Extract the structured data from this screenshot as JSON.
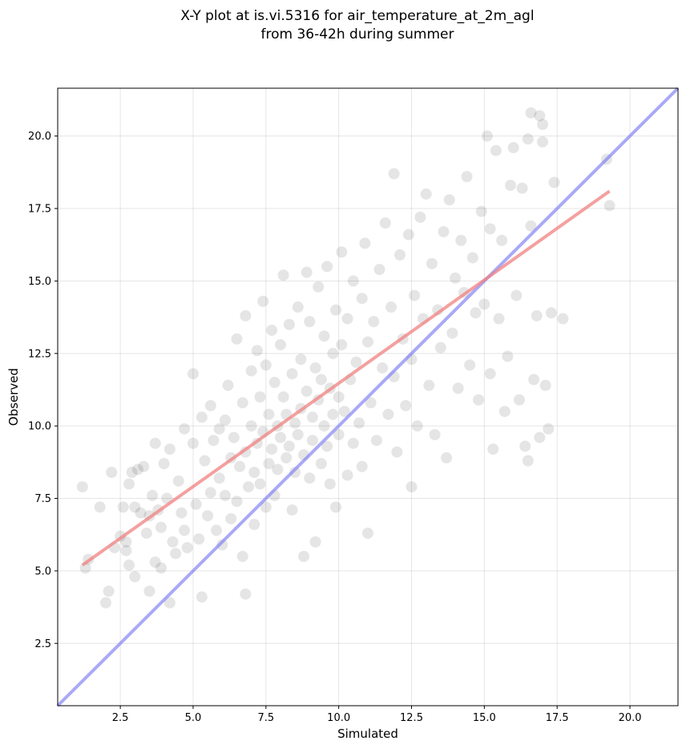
{
  "chart_data": {
    "type": "scatter",
    "title": [
      "X-Y plot at is.vi.5316 for air_temperature_at_2m_agl",
      "from 36-42h during summer"
    ],
    "xlabel": "Simulated",
    "ylabel": "Observed",
    "xlim": [
      0.35,
      21.65
    ],
    "ylim": [
      0.35,
      21.65
    ],
    "xticks": [
      2.5,
      5.0,
      7.5,
      10.0,
      12.5,
      15.0,
      17.5,
      20.0
    ],
    "yticks": [
      2.5,
      5.0,
      7.5,
      10.0,
      12.5,
      15.0,
      17.5,
      20.0
    ],
    "xtick_labels": [
      "2.5",
      "5.0",
      "7.5",
      "10.0",
      "12.5",
      "15.0",
      "17.5",
      "20.0"
    ],
    "ytick_labels": [
      "2.5",
      "5.0",
      "7.5",
      "10.0",
      "12.5",
      "15.0",
      "17.5",
      "20.0"
    ],
    "grid": true,
    "point_color": "#000000",
    "point_alpha": 0.1,
    "series": [
      {
        "values_xy": [
          [
            1.2,
            7.9
          ],
          [
            1.3,
            5.1
          ],
          [
            1.4,
            5.4
          ],
          [
            1.8,
            7.2
          ],
          [
            2.0,
            3.9
          ],
          [
            2.1,
            4.3
          ],
          [
            2.2,
            8.4
          ],
          [
            2.3,
            5.8
          ],
          [
            2.5,
            6.2
          ],
          [
            2.6,
            7.2
          ],
          [
            2.7,
            5.7
          ],
          [
            2.7,
            6.0
          ],
          [
            2.8,
            5.2
          ],
          [
            2.8,
            8.0
          ],
          [
            2.9,
            8.4
          ],
          [
            3.0,
            7.2
          ],
          [
            3.0,
            4.8
          ],
          [
            3.1,
            8.5
          ],
          [
            3.2,
            7.0
          ],
          [
            3.3,
            8.6
          ],
          [
            3.4,
            6.3
          ],
          [
            3.5,
            4.3
          ],
          [
            3.5,
            6.9
          ],
          [
            3.6,
            7.6
          ],
          [
            3.7,
            5.3
          ],
          [
            3.7,
            9.4
          ],
          [
            3.8,
            7.1
          ],
          [
            3.9,
            5.1
          ],
          [
            3.9,
            6.5
          ],
          [
            4.0,
            8.7
          ],
          [
            4.1,
            7.5
          ],
          [
            4.2,
            9.2
          ],
          [
            4.2,
            3.9
          ],
          [
            4.3,
            6.0
          ],
          [
            4.4,
            5.6
          ],
          [
            4.5,
            8.1
          ],
          [
            4.6,
            7.0
          ],
          [
            4.7,
            9.9
          ],
          [
            4.7,
            6.4
          ],
          [
            4.8,
            5.8
          ],
          [
            5.0,
            11.8
          ],
          [
            5.0,
            9.4
          ],
          [
            5.1,
            7.3
          ],
          [
            5.2,
            6.1
          ],
          [
            5.3,
            10.3
          ],
          [
            5.3,
            4.1
          ],
          [
            5.4,
            8.8
          ],
          [
            5.5,
            6.9
          ],
          [
            5.6,
            10.7
          ],
          [
            5.6,
            7.7
          ],
          [
            5.7,
            9.5
          ],
          [
            5.8,
            6.4
          ],
          [
            5.9,
            8.2
          ],
          [
            5.9,
            9.9
          ],
          [
            6.0,
            5.9
          ],
          [
            6.1,
            7.6
          ],
          [
            6.1,
            10.2
          ],
          [
            6.2,
            11.4
          ],
          [
            6.3,
            8.9
          ],
          [
            6.3,
            6.8
          ],
          [
            6.4,
            9.6
          ],
          [
            6.5,
            13.0
          ],
          [
            6.5,
            7.4
          ],
          [
            6.6,
            8.6
          ],
          [
            6.7,
            10.8
          ],
          [
            6.7,
            5.5
          ],
          [
            6.8,
            13.8
          ],
          [
            6.8,
            9.1
          ],
          [
            6.8,
            4.2
          ],
          [
            6.9,
            7.9
          ],
          [
            7.0,
            11.9
          ],
          [
            7.0,
            10.0
          ],
          [
            7.1,
            8.4
          ],
          [
            7.1,
            6.6
          ],
          [
            7.2,
            12.6
          ],
          [
            7.2,
            9.4
          ],
          [
            7.3,
            11.0
          ],
          [
            7.3,
            8.0
          ],
          [
            7.4,
            14.3
          ],
          [
            7.4,
            9.8
          ],
          [
            7.5,
            7.2
          ],
          [
            7.5,
            12.1
          ],
          [
            7.6,
            10.4
          ],
          [
            7.6,
            8.7
          ],
          [
            7.7,
            13.3
          ],
          [
            7.7,
            9.2
          ],
          [
            7.8,
            11.5
          ],
          [
            7.8,
            7.6
          ],
          [
            7.9,
            10.0
          ],
          [
            7.9,
            8.5
          ],
          [
            8.0,
            12.8
          ],
          [
            8.0,
            9.6
          ],
          [
            8.1,
            15.2
          ],
          [
            8.1,
            11.0
          ],
          [
            8.2,
            8.9
          ],
          [
            8.2,
            10.4
          ],
          [
            8.3,
            13.5
          ],
          [
            8.3,
            9.3
          ],
          [
            8.4,
            7.1
          ],
          [
            8.4,
            11.8
          ],
          [
            8.5,
            10.1
          ],
          [
            8.5,
            8.4
          ],
          [
            8.6,
            14.1
          ],
          [
            8.6,
            9.7
          ],
          [
            8.7,
            12.3
          ],
          [
            8.7,
            10.6
          ],
          [
            8.8,
            5.5
          ],
          [
            8.8,
            9.0
          ],
          [
            8.9,
            15.3
          ],
          [
            8.9,
            11.2
          ],
          [
            9.0,
            8.2
          ],
          [
            9.0,
            13.6
          ],
          [
            9.1,
            10.3
          ],
          [
            9.1,
            9.5
          ],
          [
            9.2,
            12.0
          ],
          [
            9.2,
            6.0
          ],
          [
            9.3,
            10.9
          ],
          [
            9.3,
            14.8
          ],
          [
            9.4,
            8.7
          ],
          [
            9.4,
            11.6
          ],
          [
            9.5,
            10.0
          ],
          [
            9.5,
            13.1
          ],
          [
            9.6,
            9.3
          ],
          [
            9.6,
            15.5
          ],
          [
            9.7,
            11.3
          ],
          [
            9.7,
            8.0
          ],
          [
            9.8,
            12.5
          ],
          [
            9.8,
            10.4
          ],
          [
            9.9,
            7.2
          ],
          [
            9.9,
            14.0
          ],
          [
            10.0,
            11.0
          ],
          [
            10.0,
            9.7
          ],
          [
            10.1,
            16.0
          ],
          [
            10.1,
            12.8
          ],
          [
            10.2,
            10.5
          ],
          [
            10.3,
            8.3
          ],
          [
            10.3,
            13.7
          ],
          [
            10.4,
            11.6
          ],
          [
            10.5,
            9.4
          ],
          [
            10.5,
            15.0
          ],
          [
            10.6,
            12.2
          ],
          [
            10.7,
            10.1
          ],
          [
            10.8,
            14.4
          ],
          [
            10.8,
            8.6
          ],
          [
            10.9,
            16.3
          ],
          [
            11.0,
            12.9
          ],
          [
            11.0,
            6.3
          ],
          [
            11.1,
            10.8
          ],
          [
            11.2,
            13.6
          ],
          [
            11.3,
            9.5
          ],
          [
            11.4,
            15.4
          ],
          [
            11.5,
            12.0
          ],
          [
            11.6,
            17.0
          ],
          [
            11.7,
            10.4
          ],
          [
            11.8,
            14.1
          ],
          [
            11.9,
            18.7
          ],
          [
            11.9,
            11.7
          ],
          [
            12.0,
            9.1
          ],
          [
            12.1,
            15.9
          ],
          [
            12.2,
            13.0
          ],
          [
            12.3,
            10.7
          ],
          [
            12.4,
            16.6
          ],
          [
            12.5,
            12.3
          ],
          [
            12.5,
            7.9
          ],
          [
            12.6,
            14.5
          ],
          [
            12.7,
            10.0
          ],
          [
            12.8,
            17.2
          ],
          [
            12.9,
            13.7
          ],
          [
            13.0,
            18.0
          ],
          [
            13.1,
            11.4
          ],
          [
            13.2,
            15.6
          ],
          [
            13.3,
            9.7
          ],
          [
            13.4,
            14.0
          ],
          [
            13.5,
            12.7
          ],
          [
            13.6,
            16.7
          ],
          [
            13.7,
            8.9
          ],
          [
            13.8,
            17.8
          ],
          [
            13.9,
            13.2
          ],
          [
            14.0,
            15.1
          ],
          [
            14.1,
            11.3
          ],
          [
            14.2,
            16.4
          ],
          [
            14.3,
            14.6
          ],
          [
            14.4,
            18.6
          ],
          [
            14.5,
            12.1
          ],
          [
            14.6,
            15.8
          ],
          [
            14.7,
            13.9
          ],
          [
            14.8,
            10.9
          ],
          [
            14.9,
            17.4
          ],
          [
            15.0,
            14.2
          ],
          [
            15.1,
            20.0
          ],
          [
            15.2,
            16.8
          ],
          [
            15.2,
            11.8
          ],
          [
            15.3,
            9.2
          ],
          [
            15.4,
            19.5
          ],
          [
            15.5,
            13.7
          ],
          [
            15.6,
            16.4
          ],
          [
            15.7,
            10.5
          ],
          [
            15.8,
            12.4
          ],
          [
            15.9,
            18.3
          ],
          [
            16.0,
            19.6
          ],
          [
            16.1,
            14.5
          ],
          [
            16.2,
            10.9
          ],
          [
            16.3,
            18.2
          ],
          [
            16.4,
            9.3
          ],
          [
            16.5,
            19.9
          ],
          [
            16.5,
            8.8
          ],
          [
            16.6,
            20.8
          ],
          [
            16.6,
            16.9
          ],
          [
            16.7,
            11.6
          ],
          [
            16.8,
            13.8
          ],
          [
            16.9,
            20.7
          ],
          [
            16.9,
            9.6
          ],
          [
            17.0,
            19.8
          ],
          [
            17.0,
            20.4
          ],
          [
            17.1,
            11.4
          ],
          [
            17.2,
            9.9
          ],
          [
            17.3,
            13.9
          ],
          [
            17.4,
            18.4
          ],
          [
            17.7,
            13.7
          ],
          [
            19.2,
            19.2
          ],
          [
            19.3,
            17.6
          ]
        ]
      }
    ],
    "fit_line": {
      "color": "#f08080",
      "x": [
        1.2,
        19.3
      ],
      "y": [
        5.2,
        18.1
      ]
    },
    "identity_line": {
      "color": "#7b7bf2"
    }
  }
}
